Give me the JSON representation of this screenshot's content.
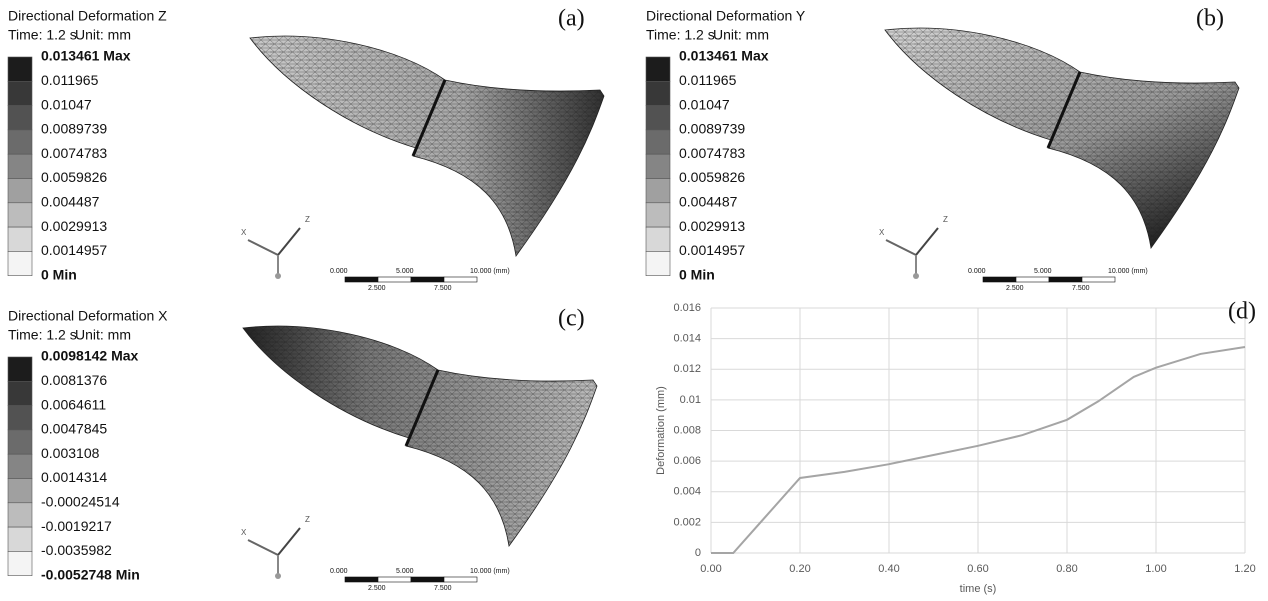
{
  "panels": [
    {
      "label": "(a)",
      "title": "Directional Deformation Z",
      "time": "Time: 1.2 s",
      "unit": "Unit: mm",
      "levels": [
        "0.013461 Max",
        "0.011965",
        "0.01047",
        "0.0089739",
        "0.0074783",
        "0.0059826",
        "0.004487",
        "0.0029913",
        "0.0014957",
        "0 Min"
      ],
      "scale_top": [
        "0.000",
        "5.000",
        "10.000 (mm)"
      ],
      "scale_bottom": [
        "2.500",
        "7.500"
      ],
      "axes": [
        "X",
        "Z"
      ]
    },
    {
      "label": "(b)",
      "title": "Directional Deformation Y",
      "time": "Time: 1.2 s",
      "unit": "Unit: mm",
      "levels": [
        "0.013461 Max",
        "0.011965",
        "0.01047",
        "0.0089739",
        "0.0074783",
        "0.0059826",
        "0.004487",
        "0.0029913",
        "0.0014957",
        "0 Min"
      ],
      "scale_top": [
        "0.000",
        "5.000",
        "10.000 (mm)"
      ],
      "scale_bottom": [
        "2.500",
        "7.500"
      ],
      "axes": [
        "X",
        "Z"
      ]
    },
    {
      "label": "(c)",
      "title": "Directional Deformation X",
      "time": "Time: 1.2 s",
      "unit": "Unit: mm",
      "levels": [
        "0.0098142 Max",
        "0.0081376",
        "0.0064611",
        "0.0047845",
        "0.003108",
        "0.0014314",
        "-0.00024514",
        "-0.0019217",
        "-0.0035982",
        "-0.0052748 Min"
      ],
      "scale_top": [
        "0.000",
        "5.000",
        "10.000 (mm)"
      ],
      "scale_bottom": [
        "2.500",
        "7.500"
      ],
      "axes": [
        "X",
        "Z"
      ]
    }
  ],
  "chart_data": {
    "type": "line",
    "label": "(d)",
    "x_label": "time (s)",
    "y_label": "Deformation (mm)",
    "x": [
      0,
      0.05,
      0.2,
      0.3,
      0.4,
      0.5,
      0.6,
      0.7,
      0.8,
      0.87,
      0.95,
      1.0,
      1.1,
      1.2
    ],
    "values": [
      0,
      0,
      0.0049,
      0.0053,
      0.0058,
      0.0064,
      0.007,
      0.0077,
      0.0087,
      0.0099,
      0.0115,
      0.0121,
      0.013,
      0.01345
    ],
    "color": "#a5a5a5",
    "grid": true,
    "xlim": [
      0,
      1.2
    ],
    "xticks": [
      {
        "value": 0,
        "label": "0.00"
      },
      {
        "value": 0.2,
        "label": "0.20"
      },
      {
        "value": 0.4,
        "label": "0.40"
      },
      {
        "value": 0.6,
        "label": "0.60"
      },
      {
        "value": 0.8,
        "label": "0.80"
      },
      {
        "value": 1.0,
        "label": "1.00"
      },
      {
        "value": 1.2,
        "label": "1.20"
      }
    ],
    "ylim": [
      0,
      0.016
    ],
    "yticks": [
      0,
      0.002,
      0.004,
      0.006,
      0.008,
      0.01,
      0.012,
      0.014,
      0.016
    ]
  }
}
